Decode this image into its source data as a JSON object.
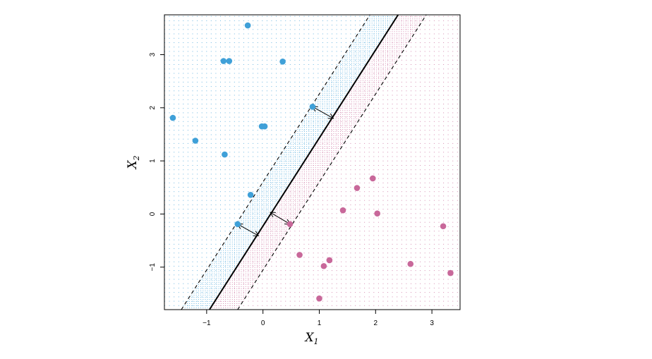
{
  "chart_data": {
    "type": "scatter",
    "title": "",
    "xlabel": "X",
    "xlabel_sub": "1",
    "ylabel": "X",
    "ylabel_sub": "2",
    "xlim": [
      -1.75,
      3.5
    ],
    "ylim": [
      -1.8,
      3.75
    ],
    "x_ticks": [
      -1,
      0,
      1,
      2,
      3
    ],
    "x_tick_labels": [
      "−1",
      "0",
      "1",
      "2",
      "3"
    ],
    "y_ticks": [
      -1,
      0,
      1,
      2,
      3
    ],
    "y_tick_labels": [
      "−1",
      "0",
      "1",
      "2",
      "3"
    ],
    "grid": "dotted background grid colored by predicted class",
    "legend": "none",
    "colors": {
      "blue": "#3fa0d8",
      "pink": "#c8689a",
      "line": "#000000"
    },
    "hyperplane": {
      "x1": [
        -0.95,
        2.4
      ],
      "x2": [
        -1.8,
        3.75
      ]
    },
    "margins": [
      {
        "style": "dashed",
        "x1": [
          -1.45,
          1.9
        ],
        "x2": [
          -1.8,
          3.75
        ]
      },
      {
        "style": "dashed",
        "x1": [
          -0.45,
          2.9
        ],
        "x2": [
          -1.8,
          3.75
        ]
      }
    ],
    "series": [
      {
        "class": "blue",
        "points": [
          [
            -0.27,
            3.55
          ],
          [
            -0.7,
            2.88
          ],
          [
            -0.6,
            2.88
          ],
          [
            0.35,
            2.87
          ],
          [
            -1.6,
            1.81
          ],
          [
            0.88,
            2.02
          ],
          [
            -0.02,
            1.65
          ],
          [
            0.03,
            1.65
          ],
          [
            -1.2,
            1.38
          ],
          [
            -0.68,
            1.12
          ],
          [
            -0.22,
            0.36
          ],
          [
            -0.45,
            -0.19
          ]
        ]
      },
      {
        "class": "pink",
        "points": [
          [
            1.95,
            0.67
          ],
          [
            1.67,
            0.49
          ],
          [
            1.42,
            0.07
          ],
          [
            2.03,
            0.01
          ],
          [
            3.2,
            -0.23
          ],
          [
            0.48,
            -0.19
          ],
          [
            0.65,
            -0.77
          ],
          [
            1.18,
            -0.87
          ],
          [
            1.08,
            -0.98
          ],
          [
            2.62,
            -0.94
          ],
          [
            3.33,
            -1.11
          ],
          [
            1.0,
            -1.59
          ]
        ]
      }
    ],
    "support_arrows": [
      {
        "from": [
          0.88,
          2.02
        ],
        "to": [
          1.25,
          1.8
        ]
      },
      {
        "from": [
          -0.45,
          -0.19
        ],
        "to": [
          -0.08,
          -0.41
        ]
      },
      {
        "from": [
          0.48,
          -0.19
        ],
        "to": [
          0.13,
          0.03
        ]
      }
    ]
  }
}
